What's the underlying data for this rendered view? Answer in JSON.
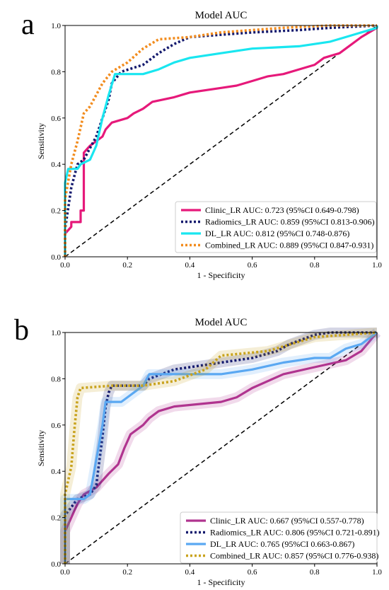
{
  "chart_data": [
    {
      "type": "line",
      "panel_label": "a",
      "title": "Model AUC",
      "xlabel": "1 - Specificity",
      "ylabel": "Sensitivity",
      "xlim": [
        0,
        1
      ],
      "ylim": [
        0,
        1
      ],
      "xticks": [
        "0.0",
        "0.2",
        "0.4",
        "0.6",
        "0.8",
        "1.0"
      ],
      "yticks": [
        "0.0",
        "0.2",
        "0.4",
        "0.6",
        "0.8",
        "1.0"
      ],
      "grid": false,
      "legend_position": "lower-right",
      "diagonal": {
        "style": "dashed",
        "color": "#000000",
        "points": [
          [
            0,
            0
          ],
          [
            1,
            1
          ]
        ]
      },
      "series": [
        {
          "name": "Clinic_LR AUC: 0.723 (95%CI 0.649-0.798)",
          "color": "#e6197a",
          "style": "solid",
          "points": [
            [
              0,
              0
            ],
            [
              0,
              0.1
            ],
            [
              0.02,
              0.13
            ],
            [
              0.02,
              0.15
            ],
            [
              0.05,
              0.15
            ],
            [
              0.05,
              0.2
            ],
            [
              0.06,
              0.2
            ],
            [
              0.06,
              0.45
            ],
            [
              0.08,
              0.48
            ],
            [
              0.1,
              0.5
            ],
            [
              0.12,
              0.52
            ],
            [
              0.13,
              0.55
            ],
            [
              0.15,
              0.58
            ],
            [
              0.2,
              0.6
            ],
            [
              0.22,
              0.62
            ],
            [
              0.25,
              0.64
            ],
            [
              0.28,
              0.67
            ],
            [
              0.35,
              0.69
            ],
            [
              0.4,
              0.71
            ],
            [
              0.5,
              0.73
            ],
            [
              0.55,
              0.74
            ],
            [
              0.6,
              0.76
            ],
            [
              0.65,
              0.78
            ],
            [
              0.7,
              0.79
            ],
            [
              0.75,
              0.81
            ],
            [
              0.8,
              0.83
            ],
            [
              0.83,
              0.86
            ],
            [
              0.88,
              0.88
            ],
            [
              0.9,
              0.9
            ],
            [
              0.95,
              0.95
            ],
            [
              1,
              0.99
            ],
            [
              1,
              1
            ]
          ]
        },
        {
          "name": "Radiomics_LR AUC: 0.859 (95%CI 0.813-0.906)",
          "color": "#141a6e",
          "style": "dotted",
          "points": [
            [
              0,
              0
            ],
            [
              0,
              0.12
            ],
            [
              0.02,
              0.3
            ],
            [
              0.04,
              0.4
            ],
            [
              0.06,
              0.42
            ],
            [
              0.08,
              0.47
            ],
            [
              0.1,
              0.52
            ],
            [
              0.12,
              0.6
            ],
            [
              0.14,
              0.68
            ],
            [
              0.15,
              0.75
            ],
            [
              0.18,
              0.8
            ],
            [
              0.25,
              0.83
            ],
            [
              0.3,
              0.88
            ],
            [
              0.35,
              0.92
            ],
            [
              0.4,
              0.95
            ],
            [
              0.5,
              0.96
            ],
            [
              0.6,
              0.97
            ],
            [
              0.75,
              0.98
            ],
            [
              0.85,
              0.99
            ],
            [
              1,
              1
            ]
          ]
        },
        {
          "name": "DL_LR AUC: 0.812 (95%CI 0.748-0.876)",
          "color": "#19e6f0",
          "style": "solid",
          "points": [
            [
              0,
              0
            ],
            [
              0,
              0.32
            ],
            [
              0.01,
              0.38
            ],
            [
              0.04,
              0.38
            ],
            [
              0.05,
              0.4
            ],
            [
              0.08,
              0.42
            ],
            [
              0.1,
              0.48
            ],
            [
              0.12,
              0.6
            ],
            [
              0.14,
              0.7
            ],
            [
              0.16,
              0.79
            ],
            [
              0.25,
              0.79
            ],
            [
              0.3,
              0.81
            ],
            [
              0.35,
              0.84
            ],
            [
              0.4,
              0.86
            ],
            [
              0.5,
              0.88
            ],
            [
              0.6,
              0.9
            ],
            [
              0.75,
              0.91
            ],
            [
              0.85,
              0.93
            ],
            [
              0.9,
              0.95
            ],
            [
              0.95,
              0.97
            ],
            [
              1,
              0.99
            ],
            [
              1,
              1
            ]
          ]
        },
        {
          "name": "Combined_LR AUC: 0.889 (95%CI 0.847-0.931)",
          "color": "#f28c1e",
          "style": "dotted",
          "points": [
            [
              0,
              0
            ],
            [
              0,
              0.25
            ],
            [
              0.02,
              0.4
            ],
            [
              0.04,
              0.5
            ],
            [
              0.06,
              0.62
            ],
            [
              0.08,
              0.65
            ],
            [
              0.1,
              0.7
            ],
            [
              0.12,
              0.75
            ],
            [
              0.15,
              0.8
            ],
            [
              0.2,
              0.84
            ],
            [
              0.25,
              0.9
            ],
            [
              0.3,
              0.94
            ],
            [
              0.4,
              0.95
            ],
            [
              0.5,
              0.97
            ],
            [
              0.6,
              0.98
            ],
            [
              0.7,
              0.99
            ],
            [
              0.85,
              1
            ],
            [
              1,
              1
            ]
          ]
        }
      ]
    },
    {
      "type": "line",
      "panel_label": "b",
      "title": "Model AUC",
      "xlabel": "1 - Specificity",
      "ylabel": "Sensitivity",
      "xlim": [
        0,
        1
      ],
      "ylim": [
        0,
        1
      ],
      "xticks": [
        "0.0",
        "0.2",
        "0.4",
        "0.6",
        "0.8",
        "1.0"
      ],
      "yticks": [
        "0.0",
        "0.2",
        "0.4",
        "0.6",
        "0.8",
        "1.0"
      ],
      "grid": false,
      "legend_position": "lower-right",
      "diagonal": {
        "style": "dashed",
        "color": "#000000",
        "points": [
          [
            0,
            0
          ],
          [
            1,
            1
          ]
        ]
      },
      "series": [
        {
          "name": "Clinic_LR AUC: 0.667 (95%CI 0.557-0.778)",
          "color": "#b0348f",
          "style": "solid",
          "points": [
            [
              0,
              0
            ],
            [
              0,
              0.14
            ],
            [
              0.02,
              0.2
            ],
            [
              0.04,
              0.26
            ],
            [
              0.06,
              0.3
            ],
            [
              0.1,
              0.33
            ],
            [
              0.12,
              0.36
            ],
            [
              0.14,
              0.39
            ],
            [
              0.17,
              0.43
            ],
            [
              0.19,
              0.5
            ],
            [
              0.21,
              0.56
            ],
            [
              0.25,
              0.6
            ],
            [
              0.27,
              0.63
            ],
            [
              0.3,
              0.66
            ],
            [
              0.35,
              0.68
            ],
            [
              0.5,
              0.7
            ],
            [
              0.55,
              0.72
            ],
            [
              0.6,
              0.76
            ],
            [
              0.65,
              0.79
            ],
            [
              0.7,
              0.82
            ],
            [
              0.8,
              0.85
            ],
            [
              0.9,
              0.88
            ],
            [
              0.95,
              0.92
            ],
            [
              1,
              1
            ]
          ]
        },
        {
          "name": "Radiomics_LR AUC: 0.806 (95%CI 0.721-0.891)",
          "color": "#141a6e",
          "style": "dotted",
          "points": [
            [
              0,
              0
            ],
            [
              0,
              0.21
            ],
            [
              0.04,
              0.28
            ],
            [
              0.08,
              0.3
            ],
            [
              0.1,
              0.34
            ],
            [
              0.12,
              0.55
            ],
            [
              0.13,
              0.68
            ],
            [
              0.14,
              0.74
            ],
            [
              0.15,
              0.77
            ],
            [
              0.25,
              0.77
            ],
            [
              0.27,
              0.8
            ],
            [
              0.35,
              0.84
            ],
            [
              0.45,
              0.86
            ],
            [
              0.5,
              0.87
            ],
            [
              0.6,
              0.89
            ],
            [
              0.68,
              0.92
            ],
            [
              0.72,
              0.95
            ],
            [
              0.8,
              0.99
            ],
            [
              0.85,
              1
            ],
            [
              1,
              1
            ]
          ]
        },
        {
          "name": "DL_LR AUC: 0.765 (95%CI 0.663-0.867)",
          "color": "#5aa8f2",
          "style": "solid",
          "points": [
            [
              0,
              0
            ],
            [
              0,
              0.28
            ],
            [
              0.06,
              0.28
            ],
            [
              0.08,
              0.3
            ],
            [
              0.1,
              0.45
            ],
            [
              0.12,
              0.6
            ],
            [
              0.13,
              0.7
            ],
            [
              0.18,
              0.7
            ],
            [
              0.2,
              0.72
            ],
            [
              0.25,
              0.77
            ],
            [
              0.27,
              0.82
            ],
            [
              0.5,
              0.82
            ],
            [
              0.6,
              0.84
            ],
            [
              0.7,
              0.87
            ],
            [
              0.8,
              0.89
            ],
            [
              0.85,
              0.89
            ],
            [
              0.9,
              0.93
            ],
            [
              0.95,
              0.95
            ],
            [
              1,
              1
            ]
          ]
        },
        {
          "name": "Combined_LR AUC: 0.857 (95%CI 0.776-0.938)",
          "color": "#c9a31e",
          "style": "dotted",
          "points": [
            [
              0,
              0
            ],
            [
              0,
              0.3
            ],
            [
              0.02,
              0.42
            ],
            [
              0.03,
              0.58
            ],
            [
              0.04,
              0.72
            ],
            [
              0.05,
              0.76
            ],
            [
              0.15,
              0.77
            ],
            [
              0.25,
              0.77
            ],
            [
              0.35,
              0.79
            ],
            [
              0.45,
              0.84
            ],
            [
              0.5,
              0.9
            ],
            [
              0.65,
              0.92
            ],
            [
              0.75,
              0.96
            ],
            [
              0.8,
              0.98
            ],
            [
              0.9,
              0.99
            ],
            [
              1,
              1
            ]
          ]
        }
      ]
    }
  ]
}
